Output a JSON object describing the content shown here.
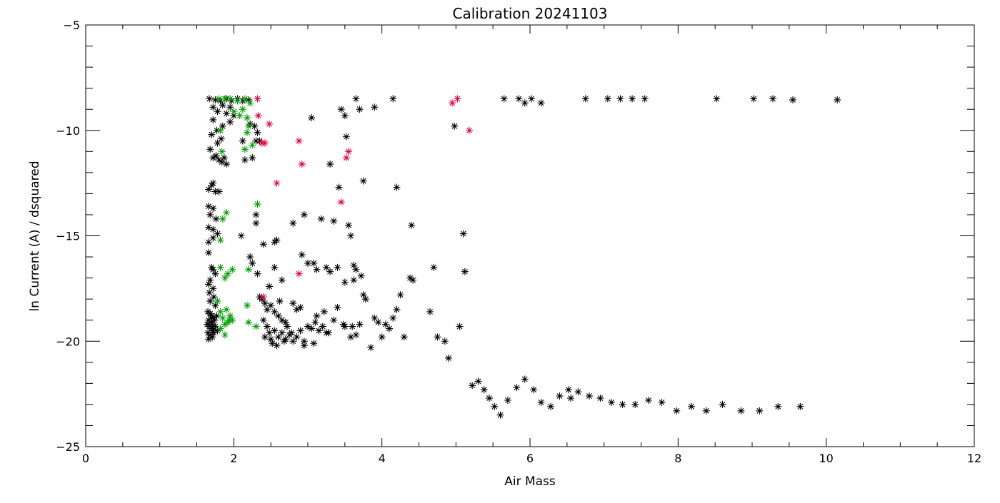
{
  "chart_data": {
    "type": "scatter",
    "title": "Calibration 20241103",
    "xlabel": "Air Mass",
    "ylabel": "ln Current (A) / dsquared",
    "xlim": [
      0,
      12
    ],
    "ylim": [
      -25,
      -5
    ],
    "xticks": [
      0,
      2,
      4,
      6,
      8,
      10,
      12
    ],
    "yticks": [
      -25,
      -20,
      -15,
      -10,
      -5
    ],
    "grid": false,
    "marker": "asterisk",
    "series": [
      {
        "color": "#000000",
        "points": [
          [
            1.67,
            -8.5
          ],
          [
            1.75,
            -8.55
          ],
          [
            1.82,
            -8.6
          ],
          [
            1.9,
            -8.5
          ],
          [
            1.97,
            -8.6
          ],
          [
            2.05,
            -8.5
          ],
          [
            2.12,
            -8.6
          ],
          [
            2.2,
            -8.55
          ],
          [
            1.85,
            -8.8
          ],
          [
            1.95,
            -8.9
          ],
          [
            1.72,
            -8.9
          ],
          [
            1.78,
            -9.1
          ],
          [
            1.9,
            -9.2
          ],
          [
            2.0,
            -9.3
          ],
          [
            1.72,
            -9.5
          ],
          [
            1.85,
            -9.8
          ],
          [
            1.95,
            -9.6
          ],
          [
            2.22,
            -9.7
          ],
          [
            2.28,
            -9.8
          ],
          [
            2.32,
            -10.1
          ],
          [
            2.35,
            -10.5
          ],
          [
            1.77,
            -10.0
          ],
          [
            1.83,
            -10.4
          ],
          [
            1.7,
            -10.2
          ],
          [
            1.68,
            -10.9
          ],
          [
            1.76,
            -11.2
          ],
          [
            1.8,
            -11.4
          ],
          [
            1.84,
            -11.5
          ],
          [
            1.72,
            -11.3
          ],
          [
            1.87,
            -11.3
          ],
          [
            1.9,
            -11.6
          ],
          [
            1.78,
            -10.6
          ],
          [
            2.15,
            -11.4
          ],
          [
            2.25,
            -11.3
          ],
          [
            2.12,
            -10.5
          ],
          [
            2.3,
            -10.5
          ],
          [
            1.66,
            -12.8
          ],
          [
            1.7,
            -12.6
          ],
          [
            1.72,
            -12.5
          ],
          [
            1.75,
            -12.9
          ],
          [
            1.8,
            -12.9
          ],
          [
            1.66,
            -13.6
          ],
          [
            1.72,
            -13.7
          ],
          [
            1.68,
            -14.0
          ],
          [
            1.76,
            -14.2
          ],
          [
            1.66,
            -14.6
          ],
          [
            1.72,
            -14.7
          ],
          [
            1.78,
            -14.9
          ],
          [
            1.66,
            -15.3
          ],
          [
            1.72,
            -15.1
          ],
          [
            1.66,
            -15.8
          ],
          [
            1.7,
            -16.5
          ],
          [
            1.72,
            -16.6
          ],
          [
            1.75,
            -16.8
          ],
          [
            1.68,
            -17.1
          ],
          [
            1.66,
            -17.3
          ],
          [
            1.72,
            -17.5
          ],
          [
            1.67,
            -17.7
          ],
          [
            1.73,
            -17.9
          ],
          [
            1.68,
            -18.1
          ],
          [
            1.75,
            -18.3
          ],
          [
            1.65,
            -18.6
          ],
          [
            1.68,
            -18.7
          ],
          [
            1.7,
            -18.8
          ],
          [
            1.72,
            -18.9
          ],
          [
            1.66,
            -19.0
          ],
          [
            1.69,
            -19.1
          ],
          [
            1.71,
            -19.2
          ],
          [
            1.74,
            -19.0
          ],
          [
            1.67,
            -19.3
          ],
          [
            1.7,
            -19.4
          ],
          [
            1.72,
            -19.5
          ],
          [
            1.65,
            -19.6
          ],
          [
            1.68,
            -19.7
          ],
          [
            1.71,
            -19.8
          ],
          [
            1.73,
            -19.6
          ],
          [
            1.66,
            -19.9
          ],
          [
            1.75,
            -19.3
          ],
          [
            1.77,
            -18.8
          ],
          [
            1.78,
            -19.5
          ],
          [
            1.64,
            -19.2
          ],
          [
            2.1,
            -15.0
          ],
          [
            2.22,
            -16.0
          ],
          [
            2.25,
            -16.3
          ],
          [
            2.3,
            -14.0
          ],
          [
            2.3,
            -14.4
          ],
          [
            2.32,
            -16.8
          ],
          [
            2.4,
            -15.4
          ],
          [
            2.48,
            -17.4
          ],
          [
            2.55,
            -15.3
          ],
          [
            2.58,
            -15.2
          ],
          [
            2.55,
            -16.5
          ],
          [
            2.65,
            -17.1
          ],
          [
            2.8,
            -14.4
          ],
          [
            2.92,
            -15.9
          ],
          [
            2.95,
            -14.0
          ],
          [
            3.0,
            -16.3
          ],
          [
            3.08,
            -16.3
          ],
          [
            3.12,
            -16.6
          ],
          [
            3.18,
            -14.2
          ],
          [
            3.25,
            -16.5
          ],
          [
            3.3,
            -16.7
          ],
          [
            3.35,
            -14.3
          ],
          [
            3.4,
            -16.5
          ],
          [
            3.42,
            -12.7
          ],
          [
            3.5,
            -17.2
          ],
          [
            3.55,
            -14.5
          ],
          [
            3.58,
            -15.0
          ],
          [
            3.62,
            -16.4
          ],
          [
            3.62,
            -17.1
          ],
          [
            3.65,
            -16.6
          ],
          [
            3.72,
            -16.9
          ],
          [
            3.75,
            -17.8
          ],
          [
            3.78,
            -18.0
          ],
          [
            4.38,
            -17.0
          ],
          [
            4.42,
            -17.1
          ],
          [
            4.4,
            -14.5
          ],
          [
            3.3,
            -11.6
          ],
          [
            3.05,
            -9.4
          ],
          [
            3.45,
            -9.0
          ],
          [
            3.5,
            -9.3
          ],
          [
            3.52,
            -10.3
          ],
          [
            3.65,
            -8.5
          ],
          [
            3.7,
            -9.0
          ],
          [
            3.75,
            -12.4
          ],
          [
            3.9,
            -8.9
          ],
          [
            4.15,
            -8.5
          ],
          [
            4.2,
            -12.7
          ],
          [
            4.98,
            -9.8
          ],
          [
            2.38,
            -18.0
          ],
          [
            2.42,
            -18.2
          ],
          [
            2.45,
            -18.5
          ],
          [
            2.5,
            -18.3
          ],
          [
            2.55,
            -18.6
          ],
          [
            2.6,
            -18.8
          ],
          [
            2.65,
            -19.0
          ],
          [
            2.7,
            -19.1
          ],
          [
            2.72,
            -19.3
          ],
          [
            2.8,
            -18.2
          ],
          [
            2.85,
            -18.5
          ],
          [
            2.9,
            -18.4
          ],
          [
            2.4,
            -19.0
          ],
          [
            2.45,
            -19.3
          ],
          [
            2.48,
            -19.6
          ],
          [
            2.5,
            -19.9
          ],
          [
            2.55,
            -19.5
          ],
          [
            2.6,
            -19.8
          ],
          [
            2.65,
            -19.6
          ],
          [
            2.7,
            -19.9
          ],
          [
            2.75,
            -19.7
          ],
          [
            2.8,
            -20.0
          ],
          [
            2.85,
            -19.8
          ],
          [
            2.9,
            -19.5
          ],
          [
            2.95,
            -20.0
          ],
          [
            3.0,
            -19.3
          ],
          [
            3.05,
            -19.4
          ],
          [
            3.1,
            -19.1
          ],
          [
            3.15,
            -19.5
          ],
          [
            3.2,
            -19.3
          ],
          [
            3.25,
            -19.6
          ],
          [
            3.35,
            -19.0
          ],
          [
            3.4,
            -18.4
          ],
          [
            3.5,
            -19.3
          ],
          [
            3.6,
            -19.3
          ],
          [
            3.65,
            -19.7
          ],
          [
            3.7,
            -19.2
          ],
          [
            3.85,
            -20.3
          ],
          [
            3.9,
            -18.9
          ],
          [
            3.95,
            -19.1
          ],
          [
            4.0,
            -19.8
          ],
          [
            4.05,
            -19.2
          ],
          [
            4.1,
            -19.4
          ],
          [
            4.15,
            -18.9
          ],
          [
            4.2,
            -18.5
          ],
          [
            4.25,
            -17.8
          ],
          [
            4.3,
            -19.8
          ],
          [
            4.65,
            -18.6
          ],
          [
            4.7,
            -16.5
          ],
          [
            4.75,
            -19.8
          ],
          [
            4.85,
            -20.0
          ],
          [
            4.9,
            -20.8
          ],
          [
            5.05,
            -19.3
          ],
          [
            5.1,
            -14.9
          ],
          [
            5.12,
            -16.7
          ],
          [
            2.42,
            -19.8
          ],
          [
            2.52,
            -20.1
          ],
          [
            2.58,
            -20.2
          ],
          [
            2.68,
            -20.0
          ],
          [
            2.78,
            -19.6
          ],
          [
            2.95,
            -20.2
          ],
          [
            3.08,
            -20.1
          ],
          [
            3.28,
            -19.6
          ],
          [
            3.48,
            -19.2
          ],
          [
            3.58,
            -19.8
          ],
          [
            3.12,
            -18.8
          ],
          [
            3.22,
            -18.6
          ],
          [
            2.35,
            -17.9
          ],
          [
            2.62,
            -18.1
          ],
          [
            5.22,
            -22.1
          ],
          [
            5.3,
            -21.9
          ],
          [
            5.38,
            -22.3
          ],
          [
            5.45,
            -22.7
          ],
          [
            5.52,
            -23.1
          ],
          [
            5.6,
            -23.5
          ],
          [
            5.7,
            -22.8
          ],
          [
            5.82,
            -22.2
          ],
          [
            5.93,
            -21.8
          ],
          [
            6.05,
            -22.3
          ],
          [
            6.15,
            -22.9
          ],
          [
            6.28,
            -23.1
          ],
          [
            6.4,
            -22.6
          ],
          [
            6.52,
            -22.3
          ],
          [
            6.55,
            -22.7
          ],
          [
            6.65,
            -22.4
          ],
          [
            6.8,
            -22.6
          ],
          [
            6.95,
            -22.7
          ],
          [
            7.1,
            -22.9
          ],
          [
            7.25,
            -23.0
          ],
          [
            7.42,
            -23.0
          ],
          [
            7.6,
            -22.8
          ],
          [
            7.78,
            -22.9
          ],
          [
            7.98,
            -23.3
          ],
          [
            8.18,
            -23.1
          ],
          [
            8.38,
            -23.3
          ],
          [
            8.6,
            -23.0
          ],
          [
            8.85,
            -23.3
          ],
          [
            9.1,
            -23.3
          ],
          [
            9.35,
            -23.1
          ],
          [
            9.65,
            -23.1
          ],
          [
            5.65,
            -8.5
          ],
          [
            5.85,
            -8.5
          ],
          [
            5.93,
            -8.7
          ],
          [
            6.02,
            -8.5
          ],
          [
            6.15,
            -8.7
          ],
          [
            6.75,
            -8.5
          ],
          [
            7.05,
            -8.5
          ],
          [
            7.22,
            -8.5
          ],
          [
            7.38,
            -8.5
          ],
          [
            7.55,
            -8.5
          ],
          [
            8.52,
            -8.5
          ],
          [
            9.02,
            -8.5
          ],
          [
            9.28,
            -8.5
          ],
          [
            9.55,
            -8.55
          ],
          [
            10.15,
            -8.55
          ]
        ]
      },
      {
        "color": "#00a000",
        "points": [
          [
            1.8,
            -8.5
          ],
          [
            1.88,
            -8.5
          ],
          [
            1.95,
            -8.5
          ],
          [
            2.05,
            -8.6
          ],
          [
            2.15,
            -8.5
          ],
          [
            2.22,
            -8.7
          ],
          [
            2.0,
            -9.1
          ],
          [
            2.08,
            -9.3
          ],
          [
            2.12,
            -9.0
          ],
          [
            2.18,
            -9.4
          ],
          [
            2.2,
            -9.8
          ],
          [
            2.18,
            -10.1
          ],
          [
            2.15,
            -10.9
          ],
          [
            2.25,
            -10.7
          ],
          [
            1.82,
            -10.0
          ],
          [
            1.84,
            -11.0
          ],
          [
            1.9,
            -13.9
          ],
          [
            1.85,
            -14.2
          ],
          [
            1.82,
            -15.2
          ],
          [
            2.32,
            -13.5
          ],
          [
            1.82,
            -16.5
          ],
          [
            1.88,
            -17.0
          ],
          [
            1.98,
            -16.6
          ],
          [
            1.92,
            -16.8
          ],
          [
            2.2,
            -16.6
          ],
          [
            1.78,
            -18.1
          ],
          [
            1.82,
            -18.6
          ],
          [
            1.85,
            -18.9
          ],
          [
            1.88,
            -19.2
          ],
          [
            1.9,
            -18.5
          ],
          [
            1.92,
            -19.1
          ],
          [
            1.95,
            -18.8
          ],
          [
            1.82,
            -19.4
          ],
          [
            1.88,
            -19.7
          ],
          [
            1.94,
            -19.0
          ],
          [
            1.98,
            -19.0
          ],
          [
            2.18,
            -18.3
          ],
          [
            2.2,
            -19.1
          ],
          [
            2.3,
            -19.3
          ]
        ]
      },
      {
        "color": "#e8003a",
        "points": [
          [
            2.32,
            -8.5
          ],
          [
            2.33,
            -9.3
          ],
          [
            2.38,
            -10.6
          ],
          [
            2.42,
            -10.6
          ],
          [
            2.48,
            -9.7
          ],
          [
            2.58,
            -12.5
          ],
          [
            2.88,
            -10.5
          ],
          [
            2.92,
            -11.6
          ],
          [
            2.88,
            -16.8
          ],
          [
            2.4,
            -17.9
          ],
          [
            3.45,
            -13.4
          ],
          [
            3.52,
            -11.3
          ],
          [
            3.55,
            -11.0
          ],
          [
            4.95,
            -8.7
          ],
          [
            5.02,
            -8.5
          ],
          [
            5.18,
            -10.0
          ]
        ]
      }
    ]
  }
}
